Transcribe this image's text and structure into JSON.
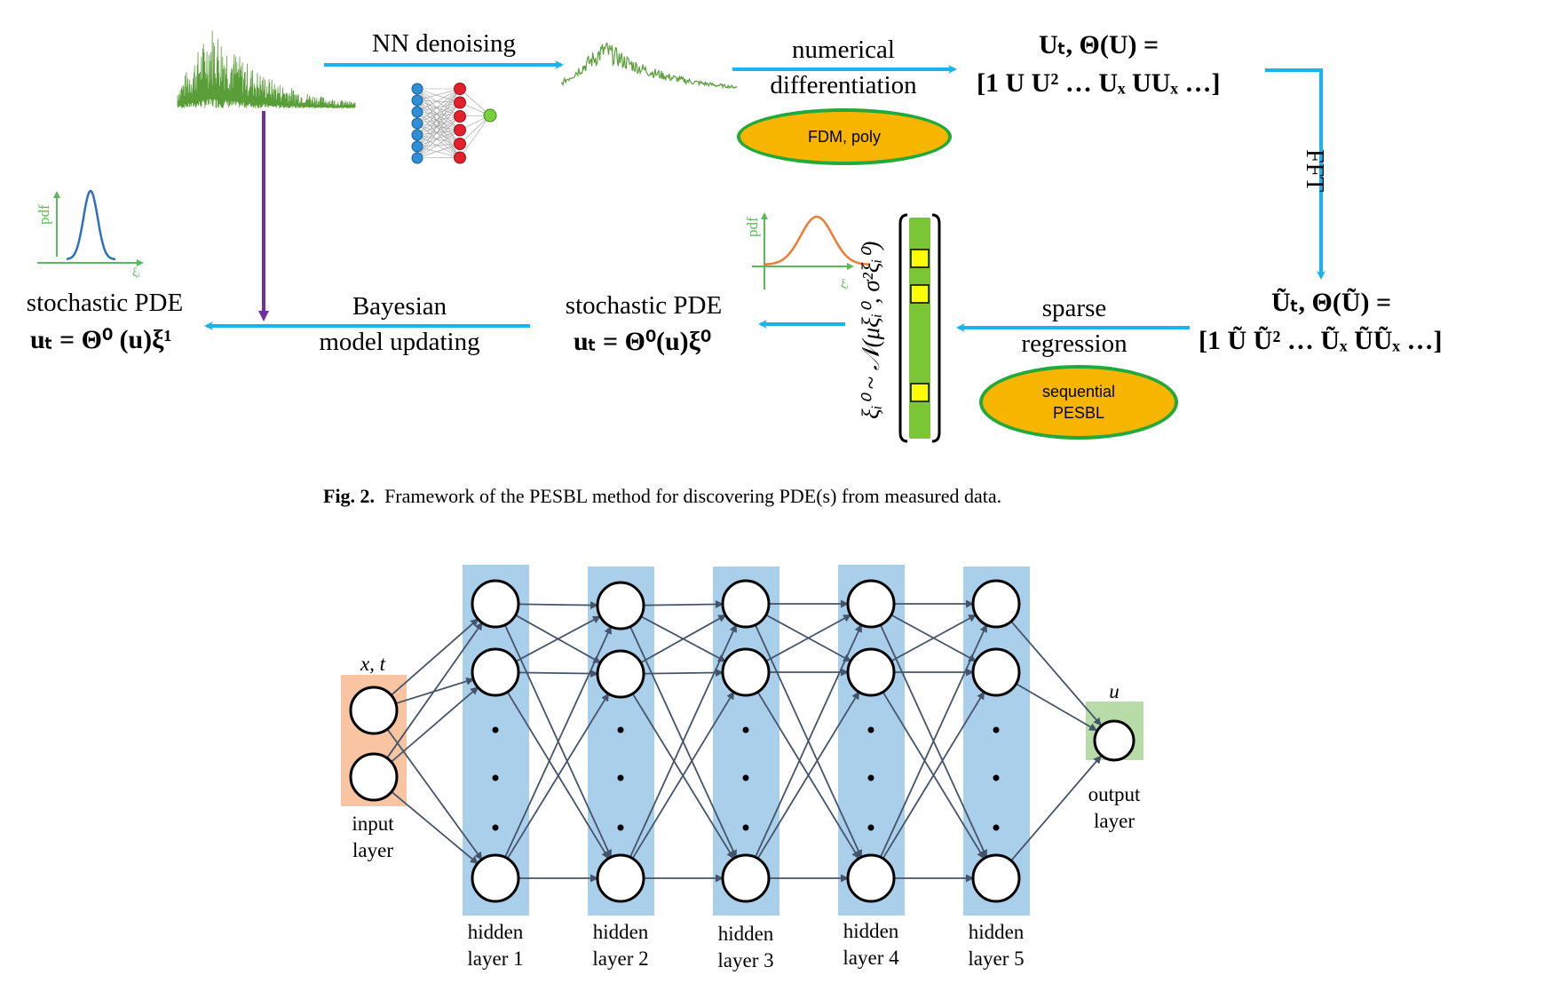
{
  "fig2": {
    "nn_denoising": "NN denoising",
    "numerical": "numerical",
    "differentiation": "differentiation",
    "fdm_poly": "FDM, poly",
    "lib_line1": "Uₜ, Θ(U) =",
    "lib_line2": "[1  U  U² … Uₓ  UUₓ …]",
    "fft": "FFT",
    "lib_tilde_line1": "Ũₜ, Θ(Ũ) =",
    "lib_tilde_line2": "[1  Ũ  Ũ² … Ũₓ  ŨŨₓ …]",
    "sparse": "sparse",
    "regression": "regression",
    "sequential": "sequential",
    "pesbl_oval": "PESBL",
    "distribution": "ξᵢ⁰ ~ 𝒩(μξᵢ⁰, σ²ξᵢ⁰)",
    "stoch_pde_mid": "stochastic PDE",
    "eq_mid": "uₜ = Θ⁰(u)ξ⁰",
    "bayesian": "Bayesian",
    "model_updating": "model updating",
    "stoch_pde_left": "stochastic PDE",
    "eq_left": "uₜ = Θ⁰ (u)ξ¹",
    "pdf": "pdf",
    "xi_axis": "ξᵢ",
    "caption_label": "Fig. 2.",
    "caption_text": "Framework of the PESBL method for discovering PDE(s) from measured data.",
    "colors": {
      "arrow": "#1ab2ef",
      "purple": "#7030a0",
      "green_line": "#5cb85c",
      "oval_fill": "#f7b500",
      "oval_border": "#1faa3a"
    }
  },
  "fig3": {
    "input_vars": "x, t",
    "input_layer": [
      "input",
      "layer"
    ],
    "output_var": "u",
    "output_layer": [
      "output",
      "layer"
    ],
    "hidden_layers": [
      [
        "hidden",
        "layer 1"
      ],
      [
        "hidden",
        "layer 2"
      ],
      [
        "hidden",
        "layer 3"
      ],
      [
        "hidden",
        "layer 4"
      ],
      [
        "hidden",
        "layer 5"
      ]
    ],
    "colors": {
      "hidden": "#a9cfeb",
      "input": "#f8c4a2",
      "output": "#b8dca8",
      "edge": "#44546a"
    }
  }
}
